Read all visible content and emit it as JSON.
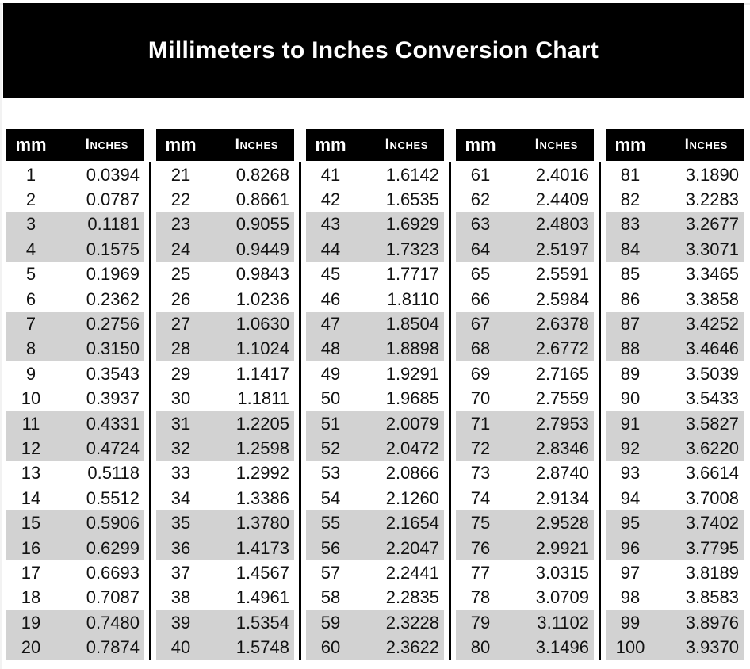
{
  "title": "Millimeters to Inches Conversion Chart",
  "colors": {
    "banner_bg": "#000000",
    "banner_text": "#ffffff",
    "header_bg": "#000000",
    "header_text": "#ffffff",
    "stripe": "#d2d2d2",
    "body_text": "#121212",
    "page_bg": "#ffffff"
  },
  "chart_data": {
    "type": "table",
    "title": "Millimeters to Inches Conversion Chart",
    "columns": [
      "mm",
      "Inches"
    ],
    "col_headers": {
      "mm": "mm",
      "inches": "Inches"
    },
    "layout": {
      "column_groups": 5,
      "rows_per_group": 20,
      "stripe_pattern": "alternating pairs of rows shaded gray starting at rows 3-4"
    },
    "groups": [
      {
        "rows": [
          {
            "mm": "1",
            "in": "0.0394"
          },
          {
            "mm": "2",
            "in": "0.0787"
          },
          {
            "mm": "3",
            "in": "0.1181"
          },
          {
            "mm": "4",
            "in": "0.1575"
          },
          {
            "mm": "5",
            "in": "0.1969"
          },
          {
            "mm": "6",
            "in": "0.2362"
          },
          {
            "mm": "7",
            "in": "0.2756"
          },
          {
            "mm": "8",
            "in": "0.3150"
          },
          {
            "mm": "9",
            "in": "0.3543"
          },
          {
            "mm": "10",
            "in": "0.3937"
          },
          {
            "mm": "11",
            "in": "0.4331"
          },
          {
            "mm": "12",
            "in": "0.4724"
          },
          {
            "mm": "13",
            "in": "0.5118"
          },
          {
            "mm": "14",
            "in": "0.5512"
          },
          {
            "mm": "15",
            "in": "0.5906"
          },
          {
            "mm": "16",
            "in": "0.6299"
          },
          {
            "mm": "17",
            "in": "0.6693"
          },
          {
            "mm": "18",
            "in": "0.7087"
          },
          {
            "mm": "19",
            "in": "0.7480"
          },
          {
            "mm": "20",
            "in": "0.7874"
          }
        ]
      },
      {
        "rows": [
          {
            "mm": "21",
            "in": "0.8268"
          },
          {
            "mm": "22",
            "in": "0.8661"
          },
          {
            "mm": "23",
            "in": "0.9055"
          },
          {
            "mm": "24",
            "in": "0.9449"
          },
          {
            "mm": "25",
            "in": "0.9843"
          },
          {
            "mm": "26",
            "in": "1.0236"
          },
          {
            "mm": "27",
            "in": "1.0630"
          },
          {
            "mm": "28",
            "in": "1.1024"
          },
          {
            "mm": "29",
            "in": "1.1417"
          },
          {
            "mm": "30",
            "in": "1.1811"
          },
          {
            "mm": "31",
            "in": "1.2205"
          },
          {
            "mm": "32",
            "in": "1.2598"
          },
          {
            "mm": "33",
            "in": "1.2992"
          },
          {
            "mm": "34",
            "in": "1.3386"
          },
          {
            "mm": "35",
            "in": "1.3780"
          },
          {
            "mm": "36",
            "in": "1.4173"
          },
          {
            "mm": "37",
            "in": "1.4567"
          },
          {
            "mm": "38",
            "in": "1.4961"
          },
          {
            "mm": "39",
            "in": "1.5354"
          },
          {
            "mm": "40",
            "in": "1.5748"
          }
        ]
      },
      {
        "rows": [
          {
            "mm": "41",
            "in": "1.6142"
          },
          {
            "mm": "42",
            "in": "1.6535"
          },
          {
            "mm": "43",
            "in": "1.6929"
          },
          {
            "mm": "44",
            "in": "1.7323"
          },
          {
            "mm": "45",
            "in": "1.7717"
          },
          {
            "mm": "46",
            "in": "1.8110"
          },
          {
            "mm": "47",
            "in": "1.8504"
          },
          {
            "mm": "48",
            "in": "1.8898"
          },
          {
            "mm": "49",
            "in": "1.9291"
          },
          {
            "mm": "50",
            "in": "1.9685"
          },
          {
            "mm": "51",
            "in": "2.0079"
          },
          {
            "mm": "52",
            "in": "2.0472"
          },
          {
            "mm": "53",
            "in": "2.0866"
          },
          {
            "mm": "54",
            "in": "2.1260"
          },
          {
            "mm": "55",
            "in": "2.1654"
          },
          {
            "mm": "56",
            "in": "2.2047"
          },
          {
            "mm": "57",
            "in": "2.2441"
          },
          {
            "mm": "58",
            "in": "2.2835"
          },
          {
            "mm": "59",
            "in": "2.3228"
          },
          {
            "mm": "60",
            "in": "2.3622"
          }
        ]
      },
      {
        "rows": [
          {
            "mm": "61",
            "in": "2.4016"
          },
          {
            "mm": "62",
            "in": "2.4409"
          },
          {
            "mm": "63",
            "in": "2.4803"
          },
          {
            "mm": "64",
            "in": "2.5197"
          },
          {
            "mm": "65",
            "in": "2.5591"
          },
          {
            "mm": "66",
            "in": "2.5984"
          },
          {
            "mm": "67",
            "in": "2.6378"
          },
          {
            "mm": "68",
            "in": "2.6772"
          },
          {
            "mm": "69",
            "in": "2.7165"
          },
          {
            "mm": "70",
            "in": "2.7559"
          },
          {
            "mm": "71",
            "in": "2.7953"
          },
          {
            "mm": "72",
            "in": "2.8346"
          },
          {
            "mm": "73",
            "in": "2.8740"
          },
          {
            "mm": "74",
            "in": "2.9134"
          },
          {
            "mm": "75",
            "in": "2.9528"
          },
          {
            "mm": "76",
            "in": "2.9921"
          },
          {
            "mm": "77",
            "in": "3.0315"
          },
          {
            "mm": "78",
            "in": "3.0709"
          },
          {
            "mm": "79",
            "in": "3.1102"
          },
          {
            "mm": "80",
            "in": "3.1496"
          }
        ]
      },
      {
        "rows": [
          {
            "mm": "81",
            "in": "3.1890"
          },
          {
            "mm": "82",
            "in": "3.2283"
          },
          {
            "mm": "83",
            "in": "3.2677"
          },
          {
            "mm": "84",
            "in": "3.3071"
          },
          {
            "mm": "85",
            "in": "3.3465"
          },
          {
            "mm": "86",
            "in": "3.3858"
          },
          {
            "mm": "87",
            "in": "3.4252"
          },
          {
            "mm": "88",
            "in": "3.4646"
          },
          {
            "mm": "89",
            "in": "3.5039"
          },
          {
            "mm": "90",
            "in": "3.5433"
          },
          {
            "mm": "91",
            "in": "3.5827"
          },
          {
            "mm": "92",
            "in": "3.6220"
          },
          {
            "mm": "93",
            "in": "3.6614"
          },
          {
            "mm": "94",
            "in": "3.7008"
          },
          {
            "mm": "95",
            "in": "3.7402"
          },
          {
            "mm": "96",
            "in": "3.7795"
          },
          {
            "mm": "97",
            "in": "3.8189"
          },
          {
            "mm": "98",
            "in": "3.8583"
          },
          {
            "mm": "99",
            "in": "3.8976"
          },
          {
            "mm": "100",
            "in": "3.9370"
          }
        ]
      }
    ]
  }
}
